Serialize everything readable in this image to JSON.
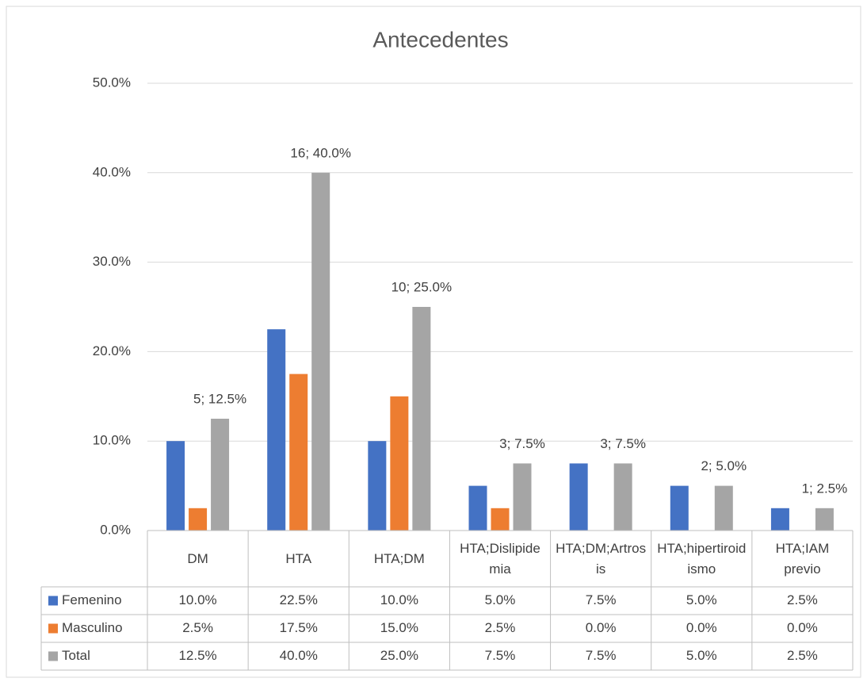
{
  "chart_data": {
    "type": "bar",
    "title": "Antecedentes",
    "categories": [
      "DM",
      "HTA",
      "HTA;DM",
      "HTA;Dislipidemia",
      "HTA;DM;Artrosis",
      "HTA;hipertiroidismo",
      "HTA;IAM previo"
    ],
    "series": [
      {
        "name": "Femenino",
        "color": "#4472c4",
        "values": [
          10,
          22.5,
          10,
          5,
          7.5,
          5,
          2.5
        ],
        "value_labels": [
          "10.0%",
          "22.5%",
          "10.0%",
          "5.0%",
          "7.5%",
          "5.0%",
          "2.5%"
        ]
      },
      {
        "name": "Masculino",
        "color": "#ed7d31",
        "values": [
          2.5,
          17.5,
          15,
          2.5,
          0,
          0,
          0
        ],
        "value_labels": [
          "2.5%",
          "17.5%",
          "15.0%",
          "2.5%",
          "0.0%",
          "0.0%",
          "0.0%"
        ]
      },
      {
        "name": "Total",
        "color": "#a5a5a5",
        "values": [
          12.5,
          40,
          25,
          7.5,
          7.5,
          5,
          2.5
        ],
        "value_labels": [
          "12.5%",
          "40.0%",
          "25.0%",
          "7.5%",
          "7.5%",
          "5.0%",
          "2.5%"
        ],
        "data_labels": [
          "5; 12.5%",
          "16; 40.0%",
          "10; 25.0%",
          "3; 7.5%",
          "3; 7.5%",
          "2; 5.0%",
          "1; 2.5%"
        ]
      }
    ],
    "ylim": [
      0,
      50
    ],
    "yticks": [
      {
        "value": 0,
        "label": "0.0%"
      },
      {
        "value": 10,
        "label": "10.0%"
      },
      {
        "value": 20,
        "label": "20.0%"
      },
      {
        "value": 30,
        "label": "30.0%"
      },
      {
        "value": 40,
        "label": "40.0%"
      },
      {
        "value": 50,
        "label": "50.0%"
      }
    ],
    "grid": true
  }
}
